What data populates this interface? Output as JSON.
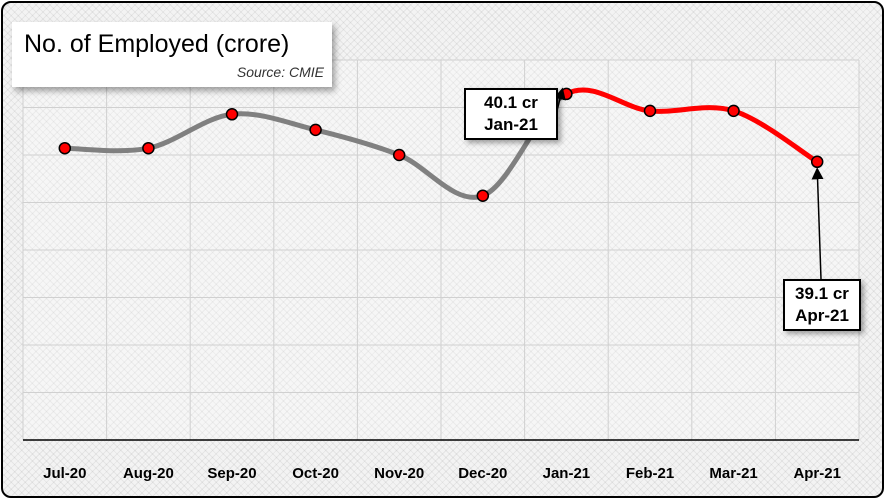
{
  "chart_data": {
    "type": "line",
    "title": "No. of Employed (crore)",
    "source": "Source: CMIE",
    "categories": [
      "Jul-20",
      "Aug-20",
      "Sep-20",
      "Oct-20",
      "Nov-20",
      "Dec-20",
      "Jan-21",
      "Feb-21",
      "Mar-21",
      "Apr-21"
    ],
    "series": [
      {
        "values": [
          39.3,
          39.3,
          39.8,
          39.57,
          39.2,
          38.6,
          40.1,
          39.85,
          39.85,
          39.1
        ],
        "colors": {
          "before": "#808080",
          "after": "#ff0000"
        },
        "highlight_from_index": 6
      }
    ],
    "marker_color": "#ff0000",
    "ylim": [
      35.0,
      40.6
    ],
    "grid": true,
    "legend": "none",
    "annotations": [
      {
        "index": 6,
        "value_label": "40.1 cr",
        "month_label": "Jan-21"
      },
      {
        "index": 9,
        "value_label": "39.1 cr",
        "month_label": "Apr-21"
      }
    ]
  }
}
